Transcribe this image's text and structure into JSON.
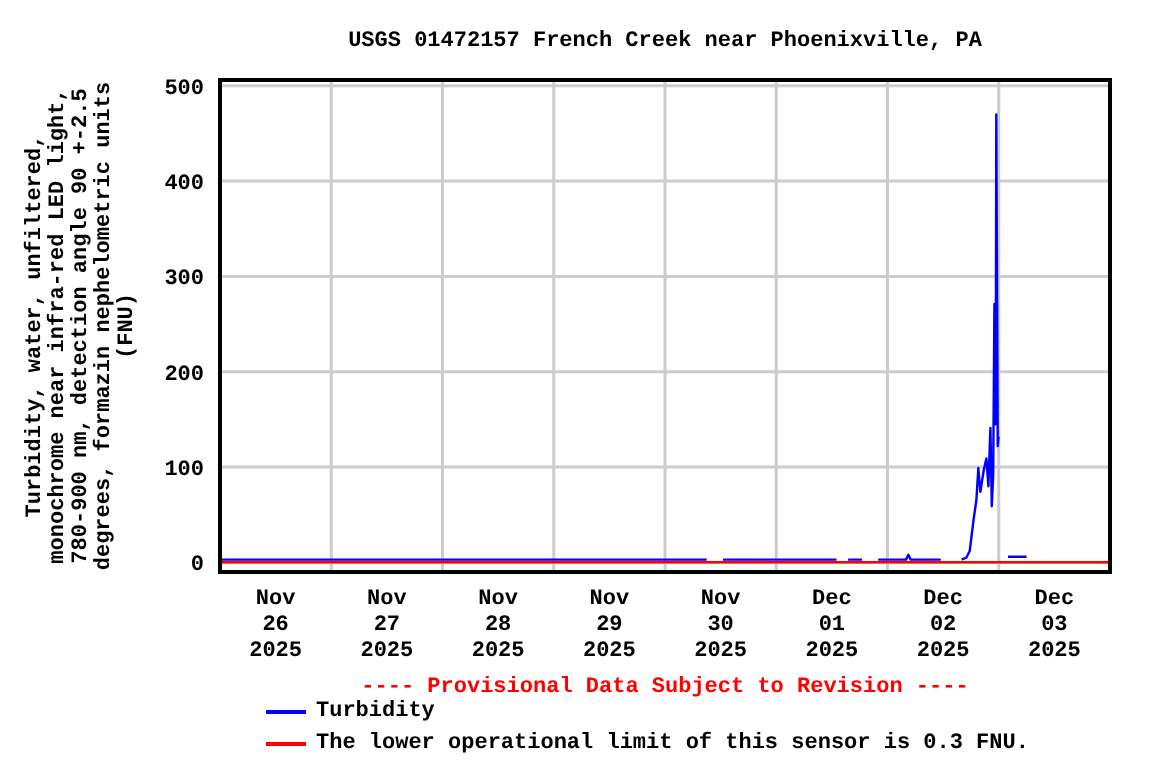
{
  "chart_data": {
    "type": "line",
    "title": "USGS 01472157 French Creek near Phoenixville, PA",
    "ylabel": "Turbidity, water, unfiltered, monochrome near infra-red LED light, 780-900 nm, detection angle 90 +-2.5 degrees, formazin nephelometric units (FNU)",
    "annotations": [
      "---- Provisional Data Subject to Revision ----"
    ],
    "series": [
      {
        "name": "Turbidity",
        "color": "#0000ff",
        "x": [
          "2025-11-26T00:00",
          "2025-11-28T00:00",
          "2025-11-30T09:00",
          "2025-11-30T10:30",
          "2025-11-30T12:30",
          "2025-12-01T13:00",
          "2025-12-01T15:00",
          "2025-12-01T15:30",
          "2025-12-01T18:30",
          "2025-12-01T19:30",
          "2025-12-01T22:00",
          "2025-12-02T04:00",
          "2025-12-02T04:30",
          "2025-12-02T05:00",
          "2025-12-02T11:30",
          "2025-12-02T12:30",
          "2025-12-02T16:00",
          "2025-12-02T17:00",
          "2025-12-02T17:44",
          "2025-12-02T18:36",
          "2025-12-02T19:10",
          "2025-12-02T19:36",
          "2025-12-02T20:02",
          "2025-12-02T20:46",
          "2025-12-02T21:20",
          "2025-12-02T21:46",
          "2025-12-02T22:12",
          "2025-12-02T22:30",
          "2025-12-02T22:48",
          "2025-12-02T23:04",
          "2025-12-02T23:21",
          "2025-12-02T23:28",
          "2025-12-02T23:47",
          "2025-12-02T23:58",
          "2025-12-03T01:00",
          "2025-12-03T02:00",
          "2025-12-03T06:00"
        ],
        "values": [
          3,
          3,
          3,
          null,
          3,
          3,
          null,
          3,
          3,
          null,
          3,
          3,
          8,
          3,
          3,
          null,
          3,
          5,
          12,
          46,
          65,
          99,
          74,
          97,
          109,
          80,
          141,
          59,
          92,
          271,
          145,
          470,
          122,
          132,
          null,
          6,
          6
        ]
      }
    ],
    "ref_lines": [
      {
        "axis": "y",
        "value": 0.3,
        "label": "The lower operational limit of this sensor is 0.3 FNU.",
        "color": "#ff0000"
      }
    ],
    "xlim": [
      "2025-11-26",
      "2025-12-04"
    ],
    "xticks": [
      {
        "value": "2025-11-26T12:00",
        "label": "Nov 26 2025"
      },
      {
        "value": "2025-11-27T00:00",
        "label": null
      },
      {
        "value": "2025-11-27T12:00",
        "label": "Nov 27 2025"
      },
      {
        "value": "2025-11-28T00:00",
        "label": null
      },
      {
        "value": "2025-11-28T12:00",
        "label": "Nov 28 2025"
      },
      {
        "value": "2025-11-29T00:00",
        "label": null
      },
      {
        "value": "2025-11-29T12:00",
        "label": "Nov 29 2025"
      },
      {
        "value": "2025-11-30T00:00",
        "label": null
      },
      {
        "value": "2025-11-30T12:00",
        "label": "Nov 30 2025"
      },
      {
        "value": "2025-12-01T00:00",
        "label": null
      },
      {
        "value": "2025-12-01T12:00",
        "label": "Dec 01 2025"
      },
      {
        "value": "2025-12-02T00:00",
        "label": null
      },
      {
        "value": "2025-12-02T12:00",
        "label": "Dec 02 2025"
      },
      {
        "value": "2025-12-03T00:00",
        "label": null
      },
      {
        "value": "2025-12-03T12:00",
        "label": "Dec 03 2025"
      }
    ],
    "ylim": [
      -10,
      506
    ],
    "yticks": [
      0,
      100,
      200,
      300,
      400,
      500
    ],
    "grid": true,
    "legend": "bottom",
    "marker": "none",
    "line_style": "solid"
  }
}
